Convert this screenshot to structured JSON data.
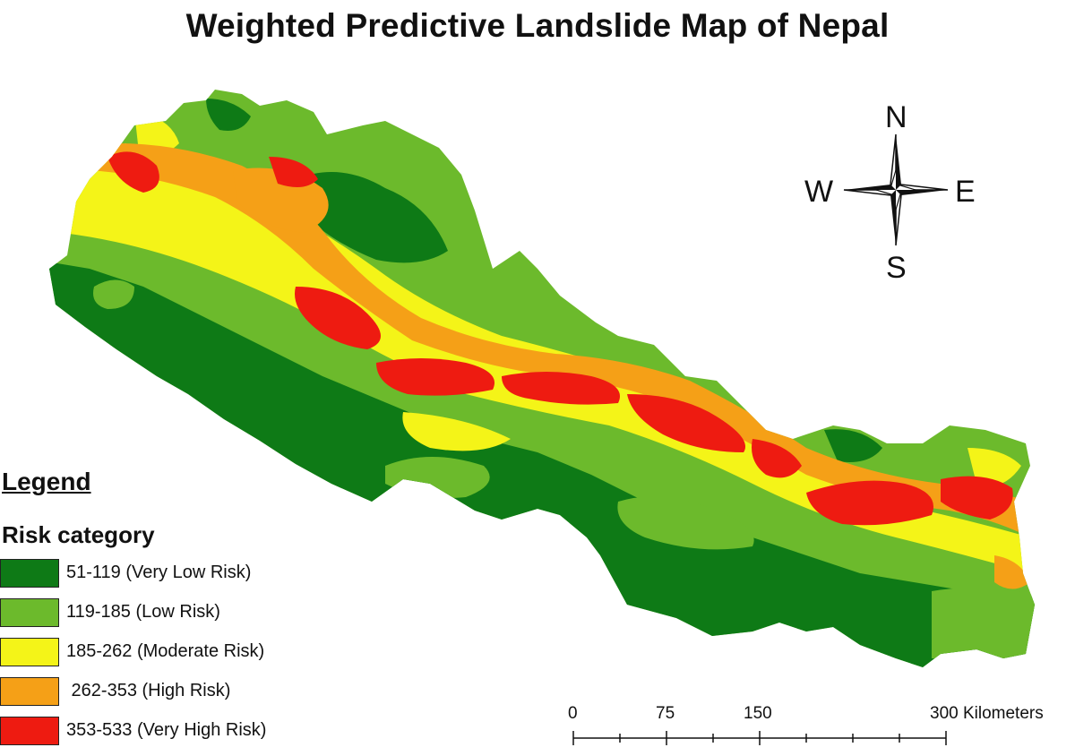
{
  "title": "Weighted Predictive Landslide Map of Nepal",
  "legend": {
    "heading": "Legend",
    "subheading": "Risk category",
    "items": [
      {
        "label": "51-119 (Very Low Risk)",
        "color": "#0e7a16"
      },
      {
        "label": "119-185 (Low Risk)",
        "color": "#6cba2c"
      },
      {
        "label": "185-262 (Moderate Risk)",
        "color": "#f4f418"
      },
      {
        "label": " 262-353 (High Risk)",
        "color": "#f5a017"
      },
      {
        "label": "353-533 (Very High Risk)",
        "color": "#ee1b11"
      }
    ]
  },
  "compass": {
    "north": "N",
    "south": "S",
    "east": "E",
    "west": "W",
    "icon": "north-arrow-compass-icon"
  },
  "scale_bar": {
    "labels": [
      "0",
      "75",
      "150",
      "300 Kilometers"
    ],
    "values_km": [
      0,
      75,
      150,
      300
    ]
  },
  "colors": {
    "very_low": "#0e7a16",
    "low": "#6cba2c",
    "moderate": "#f4f418",
    "high": "#f5a017",
    "very_high": "#ee1b11"
  }
}
